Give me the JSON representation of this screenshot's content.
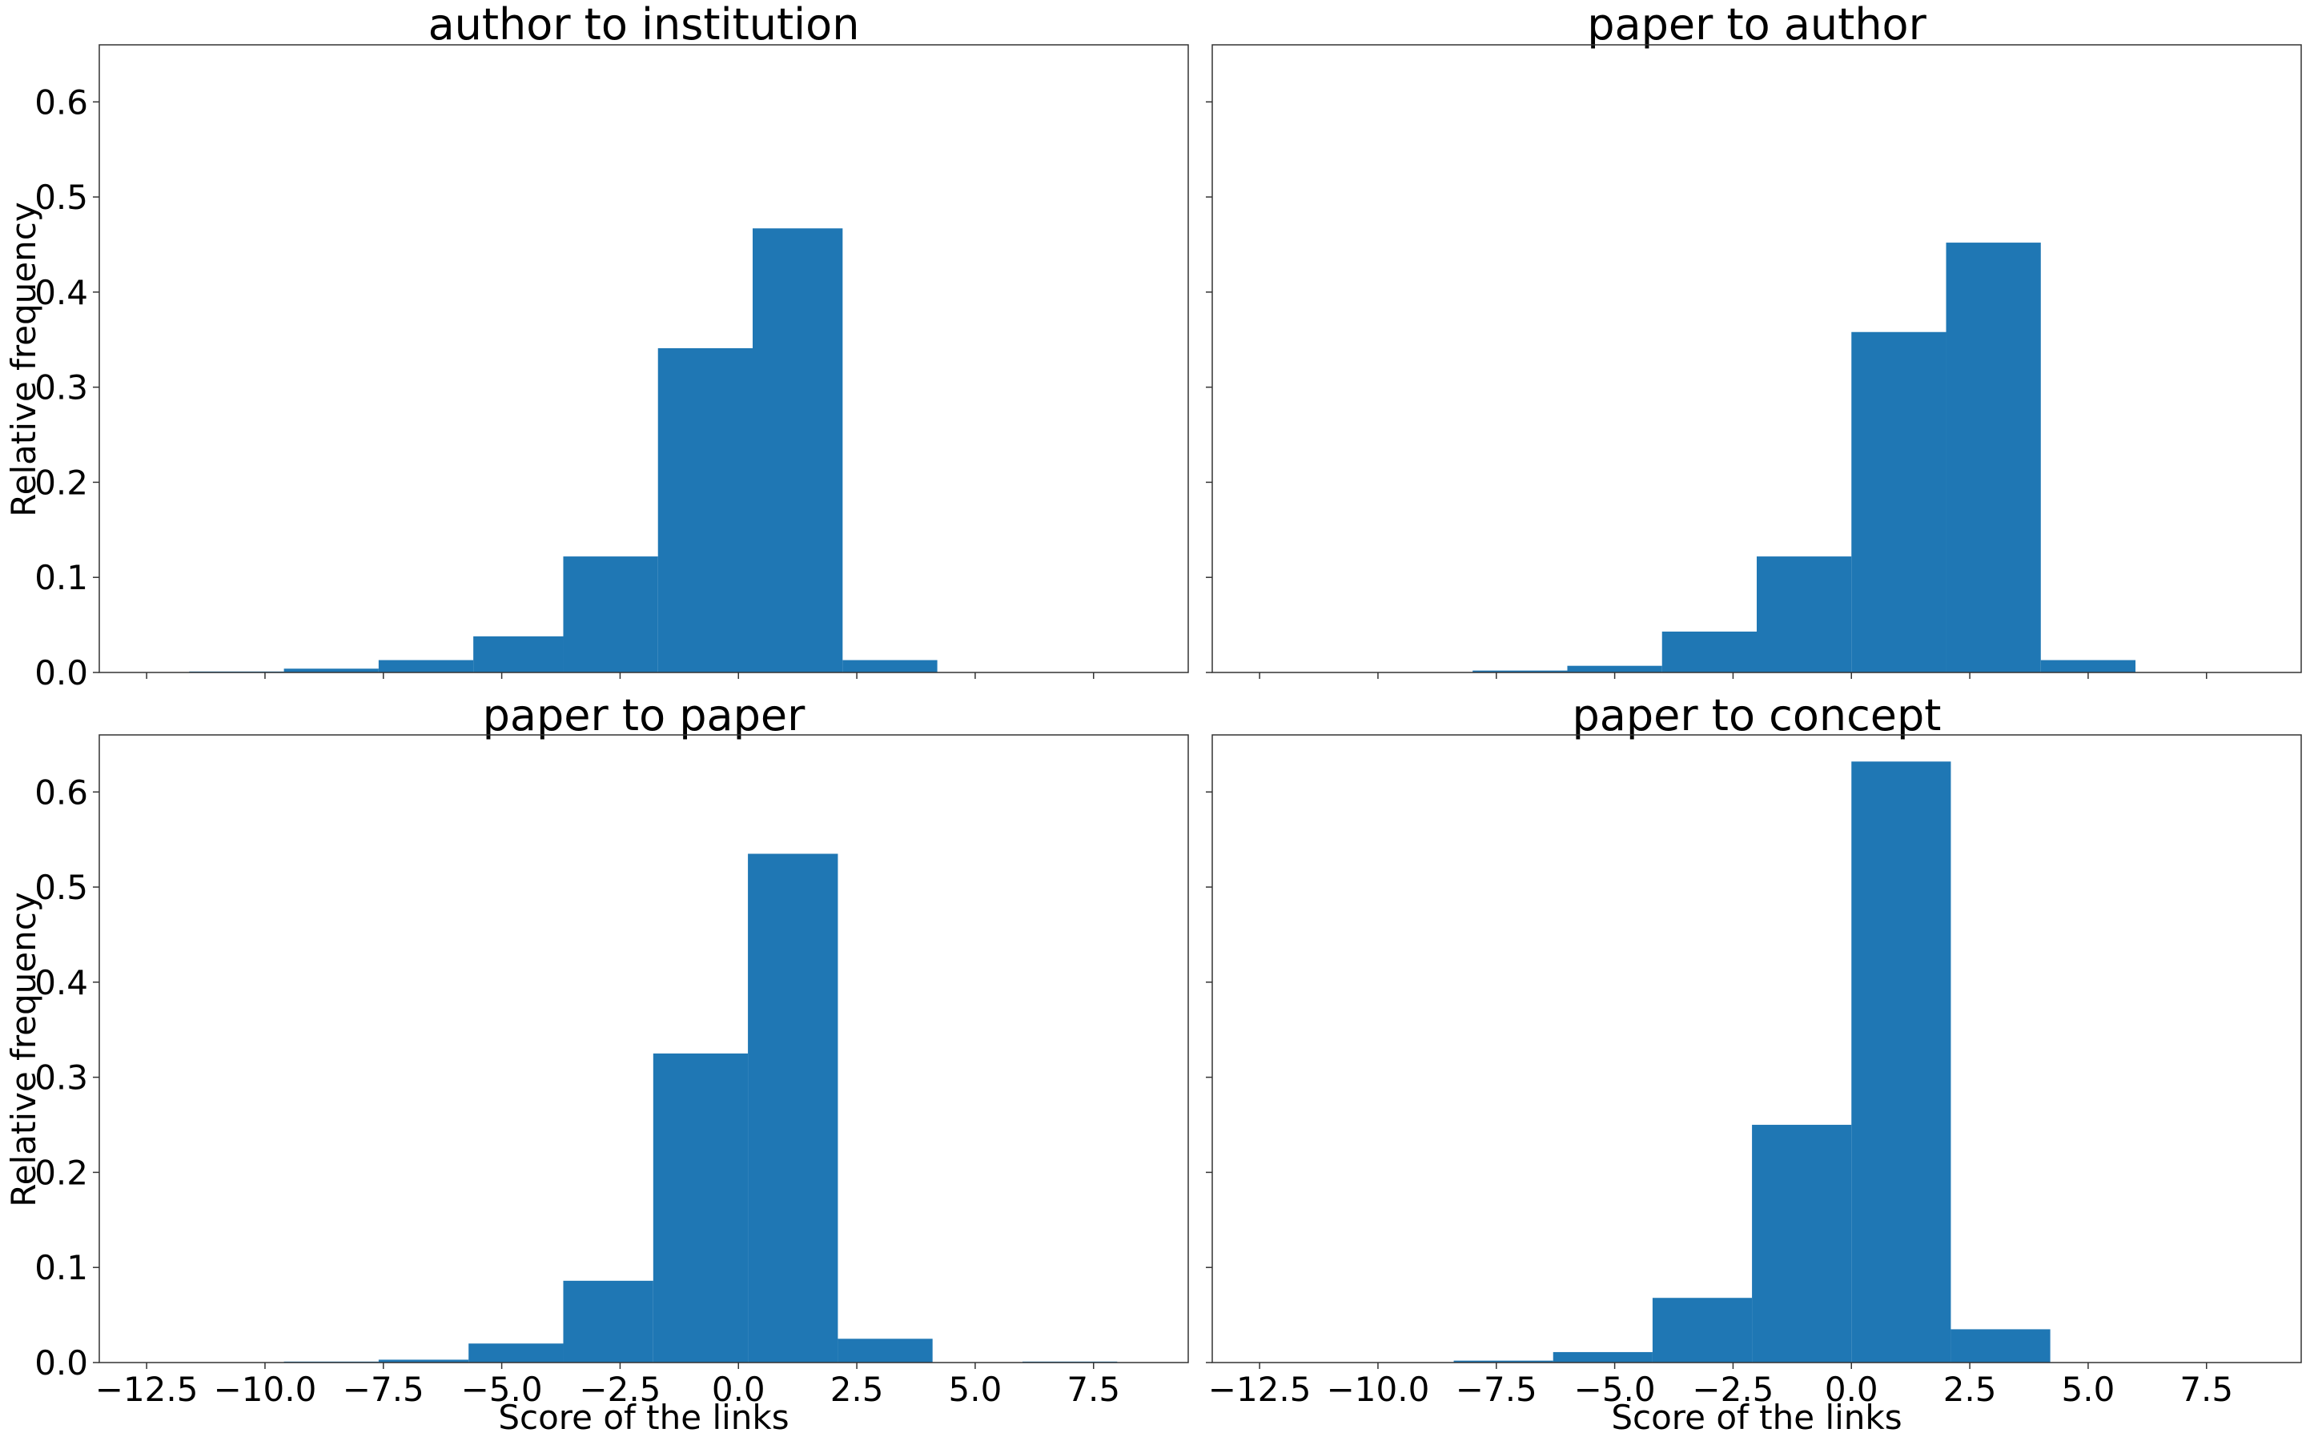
{
  "chart_data": [
    {
      "type": "bar",
      "title": "author to institution",
      "xlabel": "",
      "ylabel": "Relative frequency",
      "xlim": [
        -13.5,
        9.5
      ],
      "ylim": [
        0,
        0.66
      ],
      "xticks": [
        -12.5,
        -10.0,
        -7.5,
        -5.0,
        -2.5,
        0.0,
        2.5,
        5.0,
        7.5
      ],
      "xtick_labels": [],
      "yticks": [
        0.0,
        0.1,
        0.2,
        0.3,
        0.4,
        0.5,
        0.6
      ],
      "ytick_labels": [
        "0.0",
        "0.1",
        "0.2",
        "0.3",
        "0.4",
        "0.5",
        "0.6"
      ],
      "bins": [
        {
          "x0": -11.6,
          "x1": -9.6,
          "value": 0.001
        },
        {
          "x0": -9.6,
          "x1": -7.6,
          "value": 0.004
        },
        {
          "x0": -7.6,
          "x1": -5.6,
          "value": 0.013
        },
        {
          "x0": -5.6,
          "x1": -3.7,
          "value": 0.038
        },
        {
          "x0": -3.7,
          "x1": -1.7,
          "value": 0.122
        },
        {
          "x0": -1.7,
          "x1": 0.3,
          "value": 0.341
        },
        {
          "x0": 0.3,
          "x1": 2.2,
          "value": 0.467
        },
        {
          "x0": 2.2,
          "x1": 4.2,
          "value": 0.013
        }
      ],
      "color": "#1f77b4",
      "grid": false
    },
    {
      "type": "bar",
      "title": "paper to author",
      "xlabel": "",
      "ylabel": "",
      "xlim": [
        -13.5,
        9.5
      ],
      "ylim": [
        0,
        0.66
      ],
      "xticks": [
        -12.5,
        -10.0,
        -7.5,
        -5.0,
        -2.5,
        0.0,
        2.5,
        5.0,
        7.5
      ],
      "xtick_labels": [],
      "yticks": [
        0.0,
        0.1,
        0.2,
        0.3,
        0.4,
        0.5,
        0.6
      ],
      "ytick_labels": [],
      "bins": [
        {
          "x0": -8.0,
          "x1": -6.0,
          "value": 0.002
        },
        {
          "x0": -6.0,
          "x1": -4.0,
          "value": 0.007
        },
        {
          "x0": -4.0,
          "x1": -2.0,
          "value": 0.043
        },
        {
          "x0": -2.0,
          "x1": 0.0,
          "value": 0.122
        },
        {
          "x0": 0.0,
          "x1": 2.0,
          "value": 0.358
        },
        {
          "x0": 2.0,
          "x1": 4.0,
          "value": 0.452
        },
        {
          "x0": 4.0,
          "x1": 6.0,
          "value": 0.013
        }
      ],
      "color": "#1f77b4",
      "grid": false
    },
    {
      "type": "bar",
      "title": "paper to paper",
      "xlabel": "Score of the links",
      "ylabel": "Relative frequency",
      "xlim": [
        -13.5,
        9.5
      ],
      "ylim": [
        0,
        0.66
      ],
      "xticks": [
        -12.5,
        -10.0,
        -7.5,
        -5.0,
        -2.5,
        0.0,
        2.5,
        5.0,
        7.5
      ],
      "xtick_labels": [
        "−12.5",
        "−10.0",
        "−7.5",
        "−5.0",
        "−2.5",
        "0.0",
        "2.5",
        "5.0",
        "7.5"
      ],
      "yticks": [
        0.0,
        0.1,
        0.2,
        0.3,
        0.4,
        0.5,
        0.6
      ],
      "ytick_labels": [
        "0.0",
        "0.1",
        "0.2",
        "0.3",
        "0.4",
        "0.5",
        "0.6"
      ],
      "bins": [
        {
          "x0": -9.6,
          "x1": -7.6,
          "value": 0.001
        },
        {
          "x0": -7.6,
          "x1": -5.7,
          "value": 0.003
        },
        {
          "x0": -5.7,
          "x1": -3.7,
          "value": 0.02
        },
        {
          "x0": -3.7,
          "x1": -1.8,
          "value": 0.086
        },
        {
          "x0": -1.8,
          "x1": 0.2,
          "value": 0.325
        },
        {
          "x0": 0.2,
          "x1": 2.1,
          "value": 0.535
        },
        {
          "x0": 2.1,
          "x1": 4.1,
          "value": 0.025
        },
        {
          "x0": 6.0,
          "x1": 8.0,
          "value": 0.001
        }
      ],
      "color": "#1f77b4",
      "grid": false
    },
    {
      "type": "bar",
      "title": "paper to concept",
      "xlabel": "Score of the links",
      "ylabel": "",
      "xlim": [
        -13.5,
        9.5
      ],
      "ylim": [
        0,
        0.66
      ],
      "xticks": [
        -12.5,
        -10.0,
        -7.5,
        -5.0,
        -2.5,
        0.0,
        2.5,
        5.0,
        7.5
      ],
      "xtick_labels": [
        "−12.5",
        "−10.0",
        "−7.5",
        "−5.0",
        "−2.5",
        "0.0",
        "2.5",
        "5.0",
        "7.5"
      ],
      "yticks": [
        0.0,
        0.1,
        0.2,
        0.3,
        0.4,
        0.5,
        0.6
      ],
      "ytick_labels": [],
      "bins": [
        {
          "x0": -8.4,
          "x1": -6.3,
          "value": 0.002
        },
        {
          "x0": -6.3,
          "x1": -4.2,
          "value": 0.011
        },
        {
          "x0": -4.2,
          "x1": -2.1,
          "value": 0.068
        },
        {
          "x0": -2.1,
          "x1": 0.0,
          "value": 0.25
        },
        {
          "x0": 0.0,
          "x1": 2.1,
          "value": 0.632
        },
        {
          "x0": 2.1,
          "x1": 4.2,
          "value": 0.035
        }
      ],
      "color": "#1f77b4",
      "grid": false
    }
  ]
}
